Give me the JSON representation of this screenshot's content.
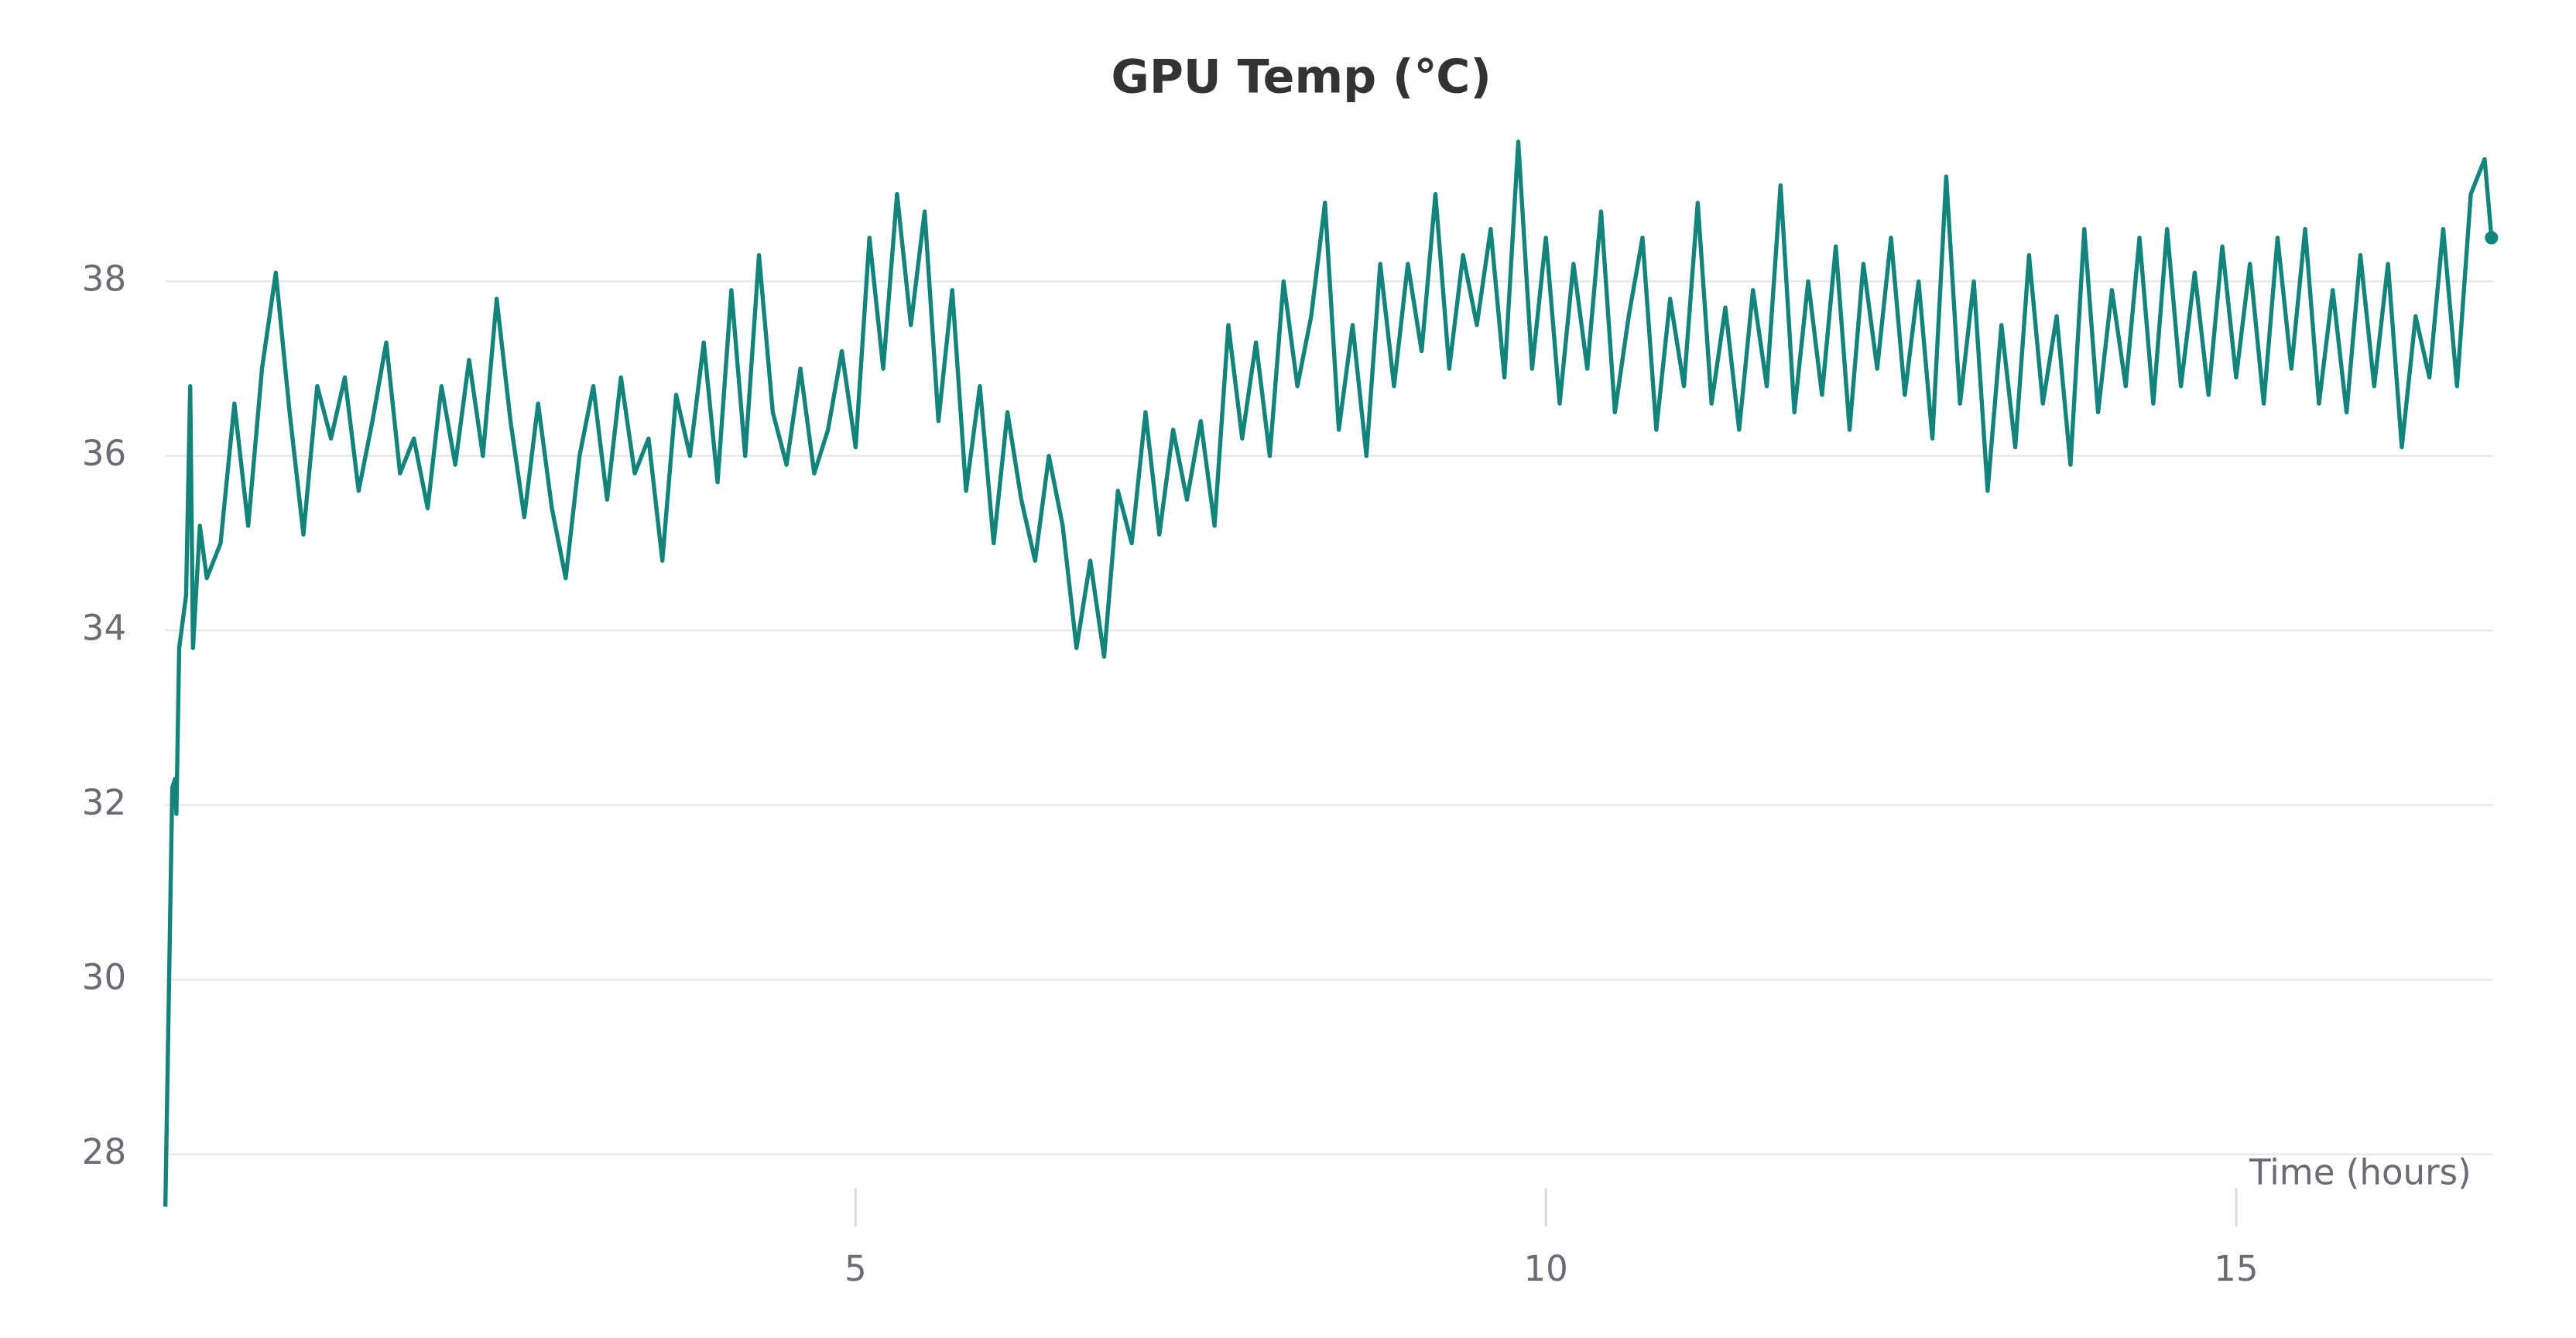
{
  "chart_data": {
    "type": "line",
    "title": "GPU Temp (℃)",
    "x_label": "Time (hours)",
    "x": [
      0,
      0.05,
      0.07,
      0.08,
      0.1,
      0.15,
      0.18,
      0.2,
      0.25,
      0.3,
      0.4,
      0.5,
      0.6,
      0.7,
      0.8,
      0.9,
      1.0,
      1.1,
      1.2,
      1.3,
      1.4,
      1.5,
      1.6,
      1.7,
      1.8,
      1.9,
      2.0,
      2.1,
      2.2,
      2.3,
      2.4,
      2.5,
      2.6,
      2.7,
      2.8,
      2.9,
      3.0,
      3.1,
      3.2,
      3.3,
      3.4,
      3.5,
      3.6,
      3.7,
      3.8,
      3.9,
      4.0,
      4.1,
      4.2,
      4.3,
      4.4,
      4.5,
      4.6,
      4.7,
      4.8,
      4.9,
      5.0,
      5.1,
      5.2,
      5.3,
      5.4,
      5.5,
      5.6,
      5.7,
      5.8,
      5.9,
      6.0,
      6.1,
      6.2,
      6.3,
      6.4,
      6.5,
      6.6,
      6.7,
      6.8,
      6.9,
      7.0,
      7.1,
      7.2,
      7.3,
      7.4,
      7.5,
      7.6,
      7.7,
      7.8,
      7.9,
      8.0,
      8.1,
      8.2,
      8.3,
      8.4,
      8.5,
      8.6,
      8.7,
      8.8,
      8.9,
      9.0,
      9.1,
      9.2,
      9.3,
      9.4,
      9.5,
      9.6,
      9.7,
      9.8,
      9.9,
      10.0,
      10.1,
      10.2,
      10.3,
      10.4,
      10.5,
      10.6,
      10.7,
      10.8,
      10.9,
      11.0,
      11.1,
      11.2,
      11.3,
      11.4,
      11.5,
      11.6,
      11.7,
      11.8,
      11.9,
      12.0,
      12.1,
      12.2,
      12.3,
      12.4,
      12.5,
      12.6,
      12.7,
      12.8,
      12.9,
      13.0,
      13.1,
      13.2,
      13.3,
      13.4,
      13.5,
      13.6,
      13.7,
      13.8,
      13.9,
      14.0,
      14.1,
      14.2,
      14.3,
      14.4,
      14.5,
      14.6,
      14.7,
      14.8,
      14.9,
      15.0,
      15.1,
      15.2,
      15.3,
      15.4,
      15.5,
      15.6,
      15.7,
      15.8,
      15.9,
      16.0,
      16.1,
      16.2,
      16.3,
      16.4,
      16.5,
      16.6,
      16.7,
      16.8,
      16.85
    ],
    "series": [
      {
        "name": "GPU Temp",
        "color": "#11847c",
        "values": [
          27.4,
          32.2,
          32.3,
          31.9,
          33.8,
          34.4,
          36.8,
          33.8,
          35.2,
          34.6,
          35.0,
          36.6,
          35.2,
          37.0,
          38.1,
          36.5,
          35.1,
          36.8,
          36.2,
          36.9,
          35.6,
          36.4,
          37.3,
          35.8,
          36.2,
          35.4,
          36.8,
          35.9,
          37.1,
          36.0,
          37.8,
          36.4,
          35.3,
          36.6,
          35.4,
          34.6,
          36.0,
          36.8,
          35.5,
          36.9,
          35.8,
          36.2,
          34.8,
          36.7,
          36.0,
          37.3,
          35.7,
          37.9,
          36.0,
          38.3,
          36.5,
          35.9,
          37.0,
          35.8,
          36.3,
          37.2,
          36.1,
          38.5,
          37.0,
          39.0,
          37.5,
          38.8,
          36.4,
          37.9,
          35.6,
          36.8,
          35.0,
          36.5,
          35.5,
          34.8,
          36.0,
          35.2,
          33.8,
          34.8,
          33.7,
          35.6,
          35.0,
          36.5,
          35.1,
          36.3,
          35.5,
          36.4,
          35.2,
          37.5,
          36.2,
          37.3,
          36.0,
          38.0,
          36.8,
          37.6,
          38.9,
          36.3,
          37.5,
          36.0,
          38.2,
          36.8,
          38.2,
          37.2,
          39.0,
          37.0,
          38.3,
          37.5,
          38.6,
          36.9,
          39.6,
          37.0,
          38.5,
          36.6,
          38.2,
          37.0,
          38.8,
          36.5,
          37.6,
          38.5,
          36.3,
          37.8,
          36.8,
          38.9,
          36.6,
          37.7,
          36.3,
          37.9,
          36.8,
          39.1,
          36.5,
          38.0,
          36.7,
          38.4,
          36.3,
          38.2,
          37.0,
          38.5,
          36.7,
          38.0,
          36.2,
          39.2,
          36.6,
          38.0,
          35.6,
          37.5,
          36.1,
          38.3,
          36.6,
          37.6,
          35.9,
          38.6,
          36.5,
          37.9,
          36.8,
          38.5,
          36.6,
          38.6,
          36.8,
          38.1,
          36.7,
          38.4,
          36.9,
          38.2,
          36.6,
          38.5,
          37.0,
          38.6,
          36.6,
          37.9,
          36.5,
          38.3,
          36.8,
          38.2,
          36.1,
          37.6,
          36.9,
          38.6,
          36.8,
          39.0,
          39.4,
          38.5
        ]
      }
    ],
    "xlim": [
      0,
      16.86
    ],
    "ylim": [
      27.4,
      39.7
    ],
    "xticks": [
      5,
      10,
      15
    ],
    "yticks": [
      28,
      30,
      32,
      34,
      36,
      38
    ],
    "grid": true
  }
}
